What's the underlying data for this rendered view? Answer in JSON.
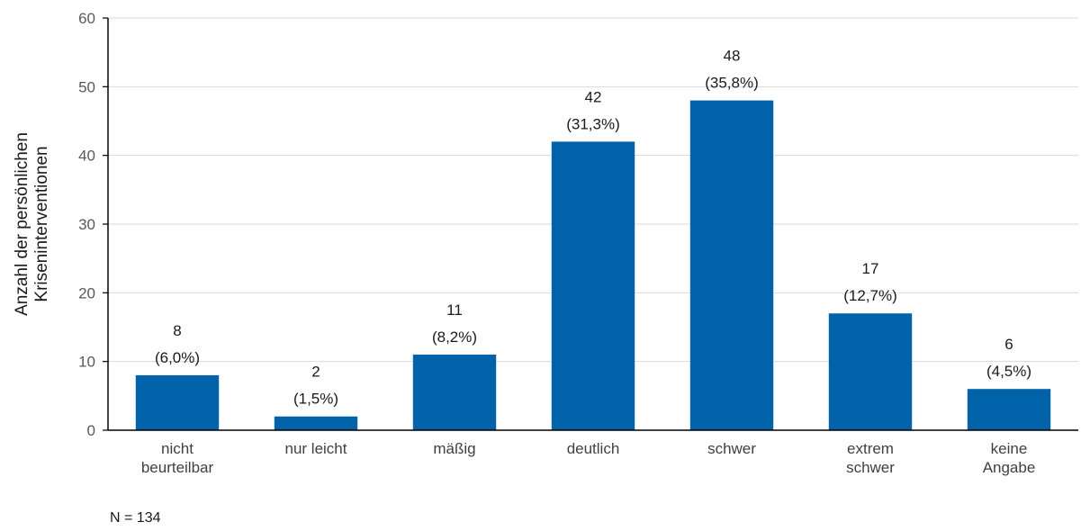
{
  "chart_data": {
    "type": "bar",
    "categories": [
      [
        "nicht",
        "beurteilbar"
      ],
      [
        "nur leicht"
      ],
      [
        "mäßig"
      ],
      [
        "deutlich"
      ],
      [
        "schwer"
      ],
      [
        "extrem",
        "schwer"
      ],
      [
        "keine",
        "Angabe"
      ]
    ],
    "values": [
      8,
      2,
      11,
      42,
      48,
      17,
      6
    ],
    "percent_labels": [
      "(6,0%)",
      "(1,5%)",
      "(8,2%)",
      "(31,3%)",
      "(35,8%)",
      "(12,7%)",
      "(4,5%)"
    ],
    "ylabel": [
      "Anzahl der persönlichen",
      "Kriseninterventionen"
    ],
    "ylim": [
      0,
      60
    ],
    "yticks": [
      0,
      10,
      20,
      30,
      40,
      50,
      60
    ],
    "grid": true,
    "bar_color": "#0062a8",
    "note": "N = 134"
  }
}
